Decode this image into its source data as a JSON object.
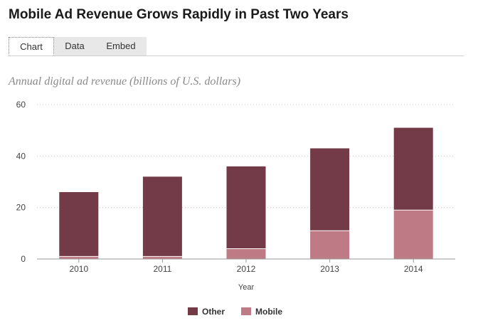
{
  "page": {
    "title": "Mobile Ad Revenue Grows Rapidly in Past Two Years",
    "tabs": [
      {
        "label": "Chart",
        "active": true
      },
      {
        "label": "Data",
        "active": false
      },
      {
        "label": "Embed",
        "active": false
      }
    ],
    "subtitle": "Annual digital ad revenue (billions of U.S. dollars)"
  },
  "colors": {
    "Other": "#733a48",
    "Mobile": "#be7a85"
  },
  "chart_data": {
    "type": "bar",
    "stacked": true,
    "categories": [
      "2010",
      "2011",
      "2012",
      "2013",
      "2014"
    ],
    "series": [
      {
        "name": "Mobile",
        "values": [
          1,
          1,
          4,
          11,
          19
        ]
      },
      {
        "name": "Other",
        "values": [
          25,
          31,
          32,
          32,
          32
        ]
      }
    ],
    "xlabel": "Year",
    "ylabel": "",
    "ylim": [
      0,
      60
    ],
    "yticks": [
      0,
      20,
      40,
      60
    ],
    "grid": true,
    "legend": [
      "Other",
      "Mobile"
    ],
    "legend_position": "bottom"
  }
}
